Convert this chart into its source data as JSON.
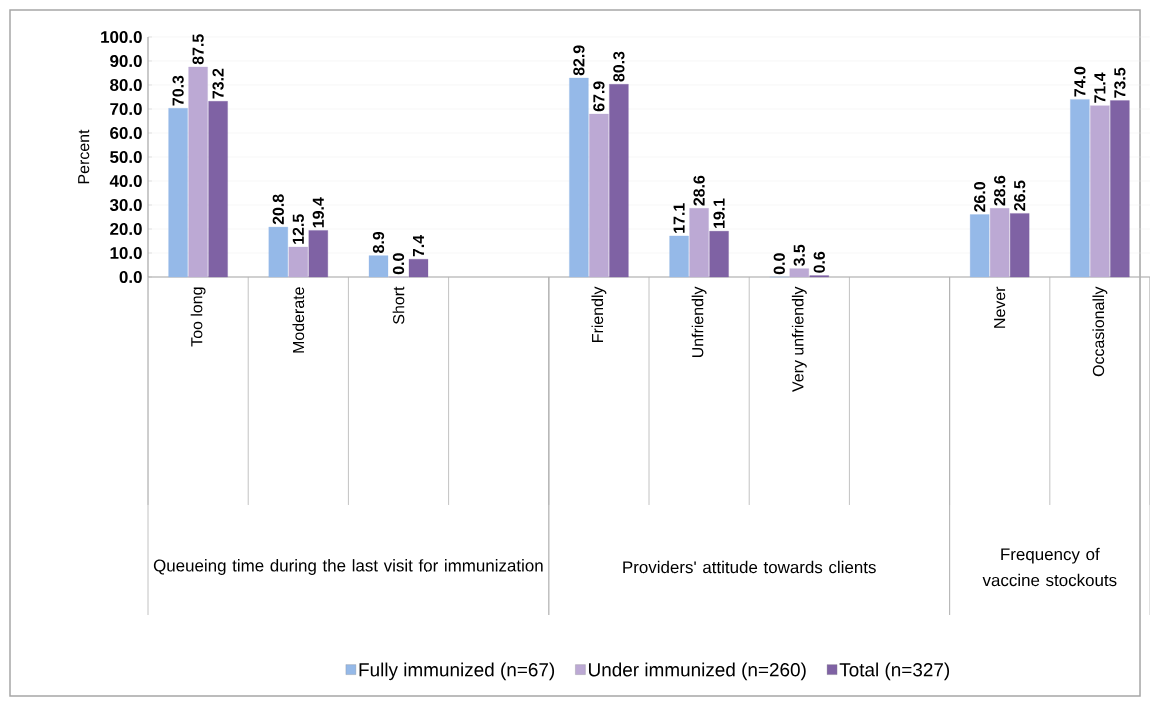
{
  "chart_data": {
    "type": "bar",
    "ylabel": "Percent",
    "categories": [
      "Too long",
      "Moderate",
      "Short",
      null,
      "Friendly",
      "Unfriendly",
      "Very unfriendly",
      null,
      "Never",
      "Occasionally"
    ],
    "series": [
      {
        "name": "Fully immunized (n=67)",
        "color": "#95b9e8",
        "values": [
          70.3,
          20.8,
          8.9,
          null,
          82.9,
          17.1,
          0,
          null,
          26.0,
          74.0
        ],
        "value_labels": [
          "70.3",
          "20.8",
          "8.9",
          null,
          "82.9",
          "17.1",
          "0.0",
          null,
          "26.0",
          "74.0"
        ]
      },
      {
        "name": "Under immunized (n=260)",
        "color": "#bca9d4",
        "values": [
          87.5,
          12.5,
          0,
          null,
          67.9,
          28.6,
          3.5,
          null,
          28.6,
          71.4
        ],
        "value_labels": [
          "87.5",
          "12.5",
          "0.0",
          null,
          "67.9",
          "28.6",
          "3.5",
          null,
          "28.6",
          "71.4"
        ]
      },
      {
        "name": "Total (n=327)",
        "color": "#7f62a4",
        "values": [
          73.2,
          19.4,
          7.4,
          null,
          80.3,
          19.1,
          0.6,
          null,
          26.5,
          73.5
        ],
        "value_labels": [
          "73.2",
          "19.4",
          "7.4",
          null,
          "80.3",
          "19.1",
          "0.6",
          null,
          "26.5",
          "73.5"
        ]
      }
    ],
    "ylim": [
      0,
      100
    ],
    "yticks": [
      {
        "value": 0,
        "label": "0.0"
      },
      {
        "value": 10,
        "label": "10.0"
      },
      {
        "value": 20,
        "label": "20.0"
      },
      {
        "value": 30,
        "label": "30.0"
      },
      {
        "value": 40,
        "label": "40.0"
      },
      {
        "value": 50,
        "label": "50.0"
      },
      {
        "value": 60,
        "label": "60.0"
      },
      {
        "value": 70,
        "label": "70.0"
      },
      {
        "value": 80,
        "label": "80.0"
      },
      {
        "value": 90,
        "label": "90.0"
      },
      {
        "value": 100,
        "label": "100.0"
      }
    ],
    "grid": "y",
    "legend": "bottom",
    "annotations": [
      "Queueing time during the last visit for immunization",
      "Providers' attitude towards clients",
      "Frequency of vaccine stockouts"
    ]
  }
}
